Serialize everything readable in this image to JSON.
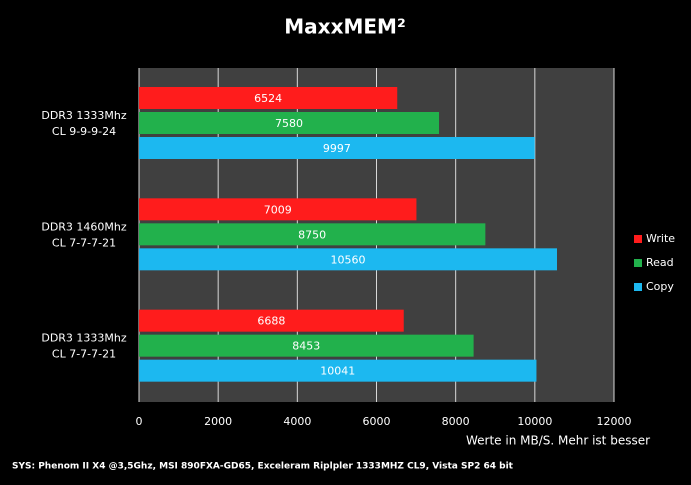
{
  "chart_data": {
    "type": "hbar",
    "title": "MaxxMEM²",
    "categories": [
      [
        "DDR3 1333Mhz",
        "CL 9-9-9-24"
      ],
      [
        "DDR3 1460Mhz",
        "CL 7-7-7-21"
      ],
      [
        "DDR3 1333Mhz",
        "CL 7-7-7-21"
      ]
    ],
    "series": [
      {
        "name": "Write",
        "color": "#ff1c1c",
        "values": [
          6524,
          7009,
          6688
        ]
      },
      {
        "name": "Read",
        "color": "#22b14c",
        "values": [
          7580,
          8750,
          8453
        ]
      },
      {
        "name": "Copy",
        "color": "#1cb8f0",
        "values": [
          9997,
          10560,
          10041
        ]
      }
    ],
    "xlim": [
      0,
      12000
    ],
    "xticks": [
      0,
      2000,
      4000,
      6000,
      8000,
      10000,
      12000
    ],
    "grid": true,
    "x_label": "Werte in MB/S. Mehr ist besser",
    "legend": "right",
    "footer": "SYS: Phenom II X4 @3,5Ghz, MSI 890FXA-GD65, Exceleram Riplpler 1333MHZ CL9, Vista SP2 64 bit"
  }
}
